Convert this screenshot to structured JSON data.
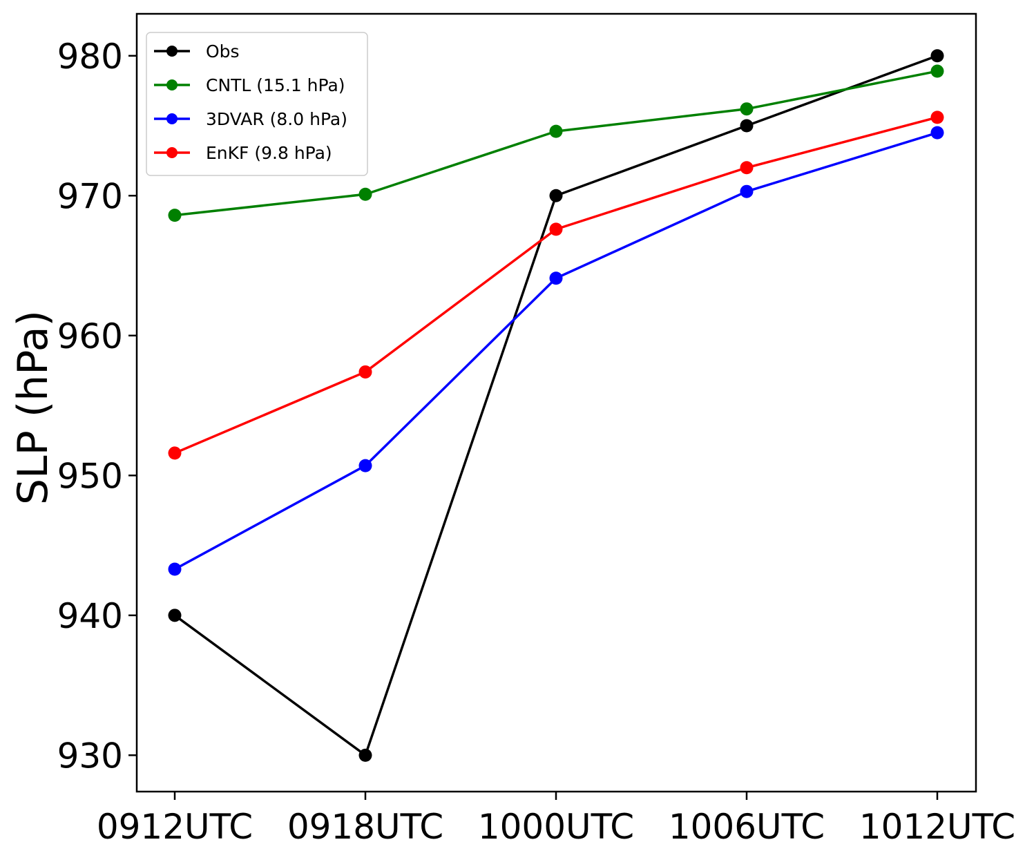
{
  "chart_data": {
    "type": "line",
    "title": "",
    "xlabel": "",
    "ylabel": "SLP (hPa)",
    "categories": [
      "0912UTC",
      "0918UTC",
      "1000UTC",
      "1006UTC",
      "1012UTC"
    ],
    "yticks": [
      930,
      940,
      950,
      960,
      970,
      980
    ],
    "ylim": [
      927.4,
      983
    ],
    "grid": false,
    "legend_position": "top-left",
    "series": [
      {
        "name": "Obs",
        "color": "#000000",
        "values": [
          940,
          930,
          970,
          975,
          980
        ]
      },
      {
        "name": "CNTL (15.1 hPa)",
        "color": "#008000",
        "values": [
          968.6,
          970.1,
          974.6,
          976.2,
          978.9
        ]
      },
      {
        "name": "3DVAR (8.0 hPa)",
        "color": "#0000ff",
        "values": [
          943.3,
          950.7,
          964.1,
          970.3,
          974.5
        ]
      },
      {
        "name": "EnKF (9.8 hPa)",
        "color": "#ff0000",
        "values": [
          951.6,
          957.4,
          967.6,
          972.0,
          975.6
        ]
      }
    ]
  }
}
